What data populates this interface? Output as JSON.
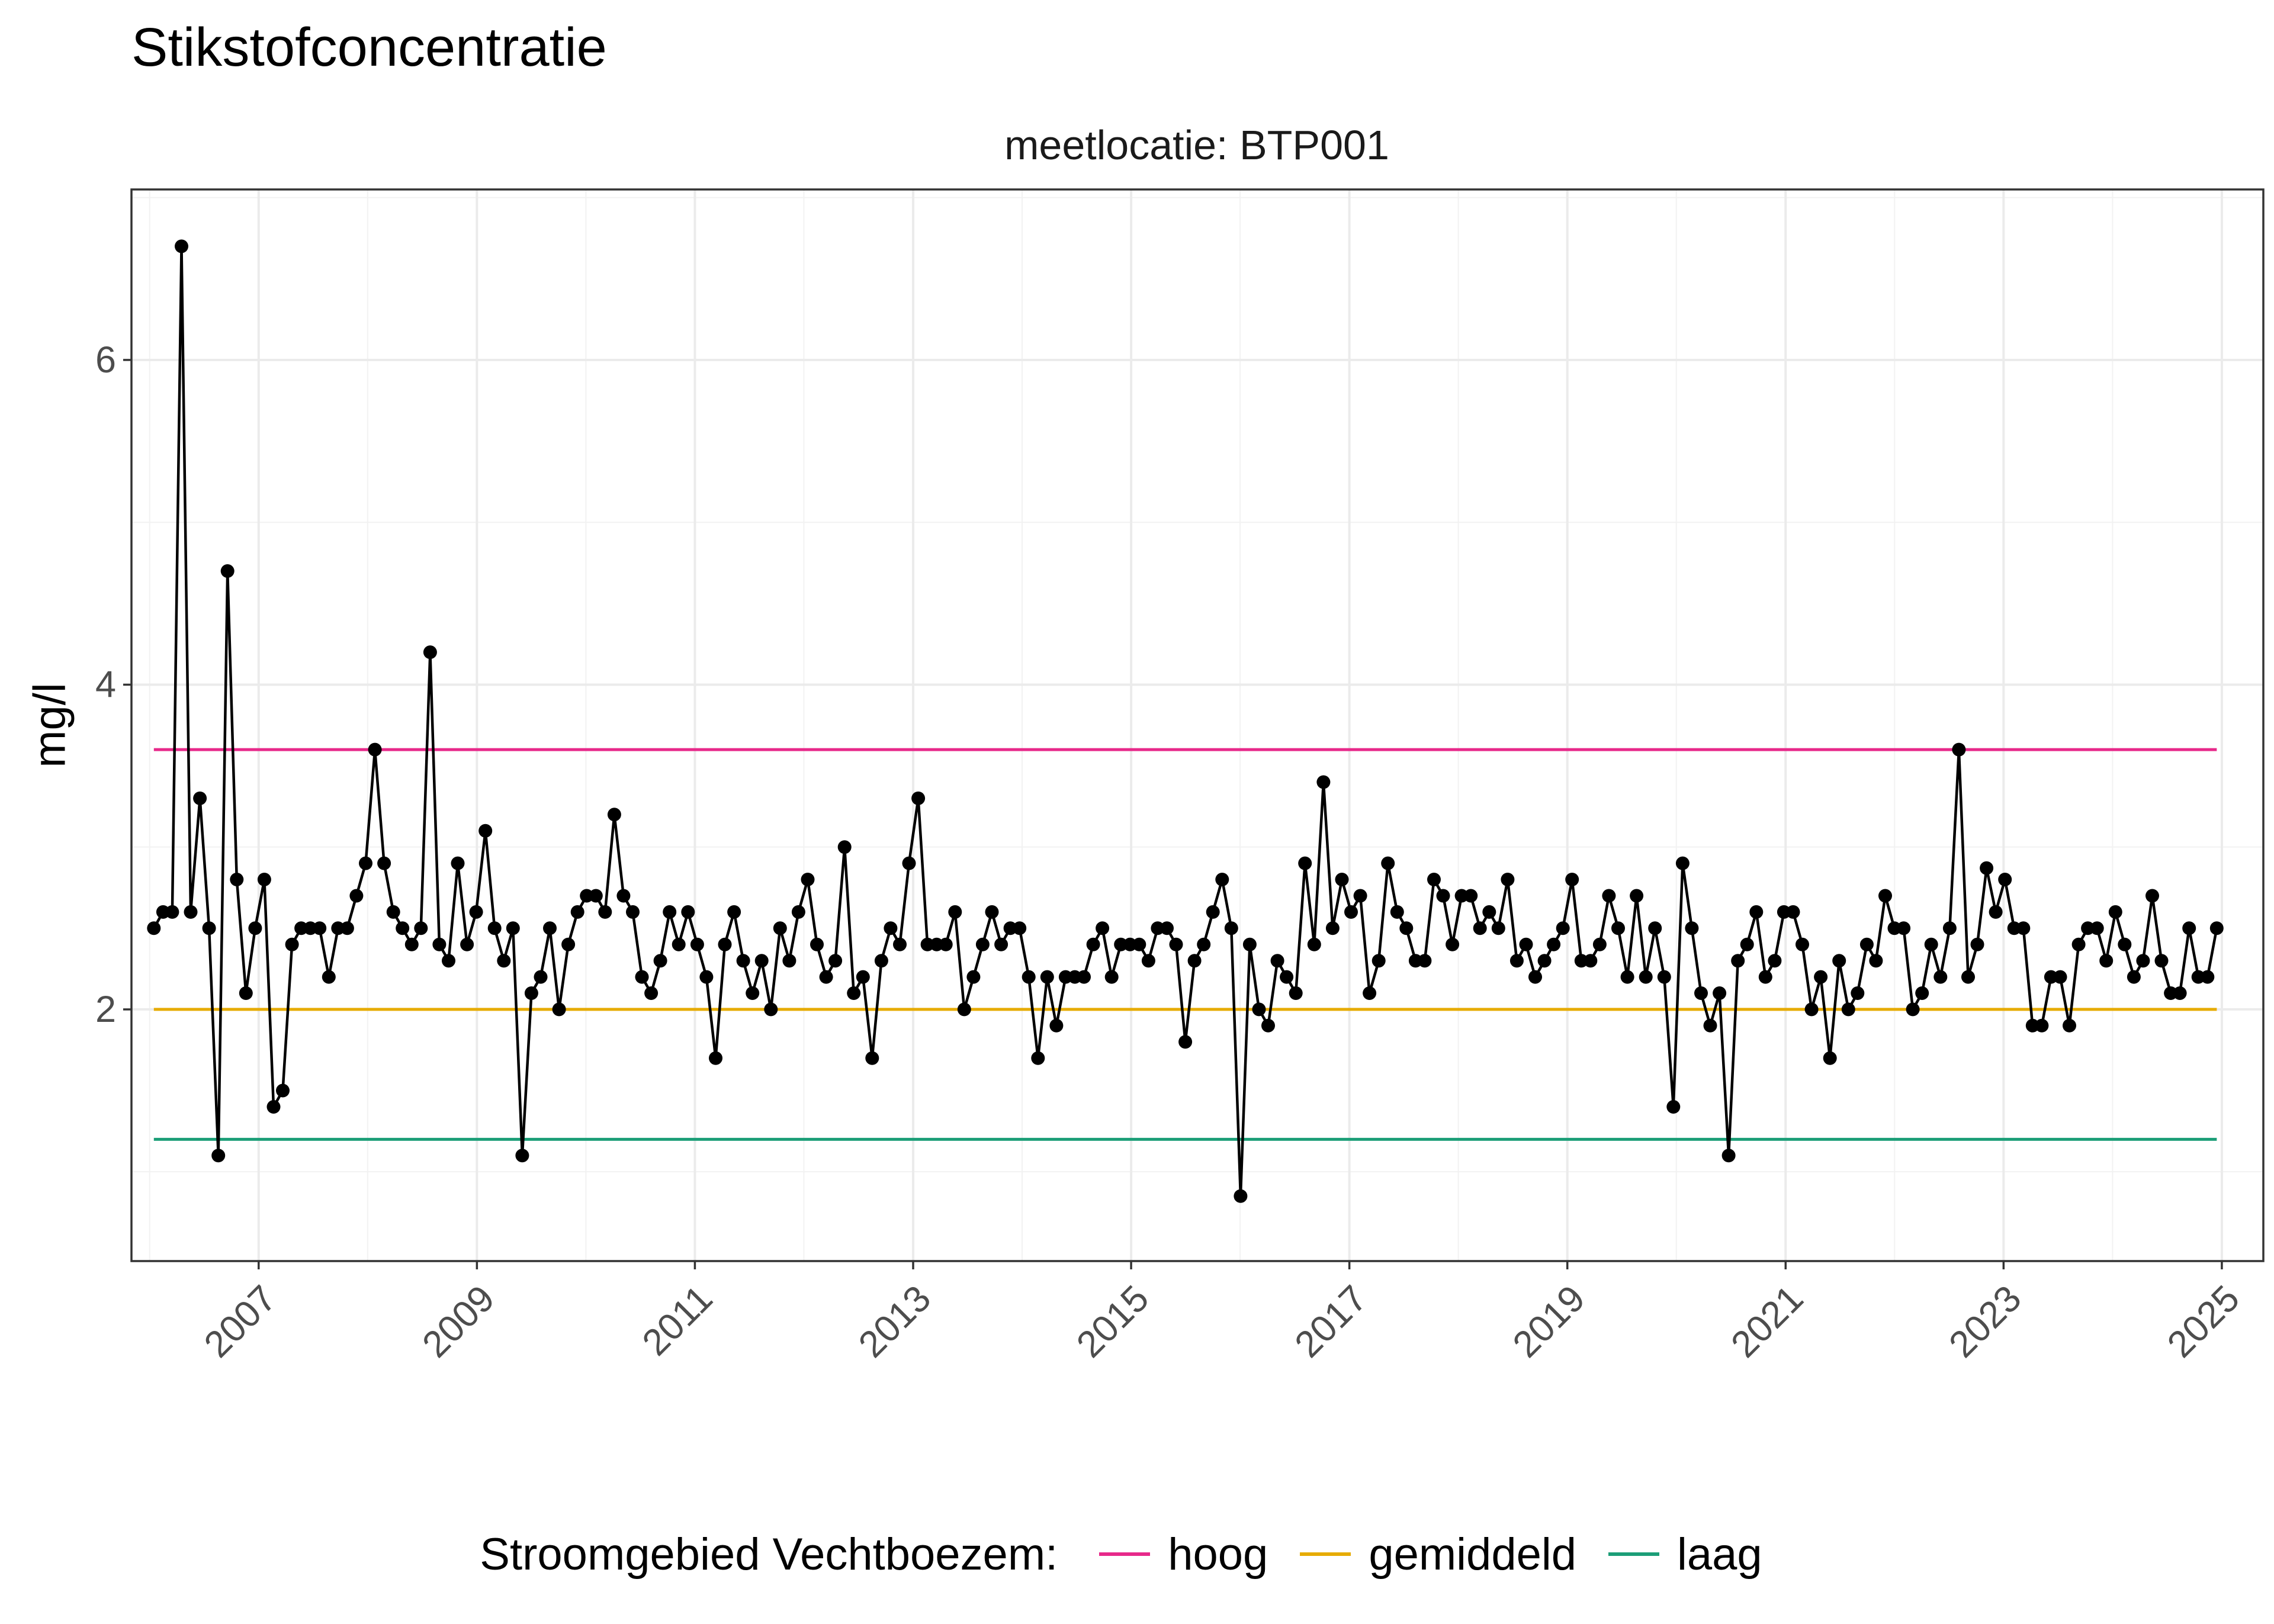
{
  "chart_data": {
    "type": "line",
    "title": "Stikstofconcentratie",
    "facet_label": "meetlocatie: BTP001",
    "xlabel": "",
    "ylabel": "mg/l",
    "xlim": [
      "2005-11-01",
      "2025-05-20"
    ],
    "ylim": [
      0.45,
      7.05
    ],
    "x_ticks": [
      "2007",
      "2009",
      "2011",
      "2013",
      "2015",
      "2017",
      "2019",
      "2021",
      "2023",
      "2025"
    ],
    "y_ticks": [
      2,
      4,
      6
    ],
    "grid": true,
    "legend_position": "bottom",
    "series_color": "#000000",
    "values": [
      2.5,
      2.6,
      2.6,
      6.7,
      2.6,
      3.3,
      2.5,
      1.1,
      4.7,
      2.8,
      2.1,
      2.5,
      2.8,
      1.4,
      1.5,
      2.4,
      2.5,
      2.5,
      2.5,
      2.2,
      2.5,
      2.5,
      2.7,
      2.9,
      3.6,
      2.9,
      2.6,
      2.5,
      2.4,
      2.5,
      4.2,
      2.4,
      2.3,
      2.9,
      2.4,
      2.6,
      3.1,
      2.5,
      2.3,
      2.5,
      1.1,
      2.1,
      2.2,
      2.5,
      2.0,
      2.4,
      2.6,
      2.7,
      2.7,
      2.6,
      3.2,
      2.7,
      2.6,
      2.2,
      2.1,
      2.3,
      2.6,
      2.4,
      2.6,
      2.4,
      2.2,
      1.7,
      2.4,
      2.6,
      2.3,
      2.1,
      2.3,
      2.0,
      2.5,
      2.3,
      2.6,
      2.8,
      2.4,
      2.2,
      2.3,
      3.0,
      2.1,
      2.2,
      1.7,
      2.3,
      2.5,
      2.4,
      2.9,
      3.3,
      2.4,
      2.4,
      2.4,
      2.6,
      2.0,
      2.2,
      2.4,
      2.6,
      2.4,
      2.5,
      2.5,
      2.2,
      1.7,
      2.2,
      1.9,
      2.2,
      2.2,
      2.2,
      2.4,
      2.5,
      2.2,
      2.4,
      2.4,
      2.4,
      2.3,
      2.5,
      2.5,
      2.4,
      1.8,
      2.3,
      2.4,
      2.6,
      2.8,
      2.5,
      0.85,
      2.4,
      2.0,
      1.9,
      2.3,
      2.2,
      2.1,
      2.9,
      2.4,
      3.4,
      2.5,
      2.8,
      2.6,
      2.7,
      2.1,
      2.3,
      2.9,
      2.6,
      2.5,
      2.3,
      2.3,
      2.8,
      2.7,
      2.4,
      2.7,
      2.7,
      2.5,
      2.6,
      2.5,
      2.8,
      2.3,
      2.4,
      2.2,
      2.3,
      2.4,
      2.5,
      2.8,
      2.3,
      2.3,
      2.4,
      2.7,
      2.5,
      2.2,
      2.7,
      2.2,
      2.5,
      2.2,
      1.4,
      2.9,
      2.5,
      2.1,
      1.9,
      2.1,
      1.1,
      2.3,
      2.4,
      2.6,
      2.2,
      2.3,
      2.6,
      2.6,
      2.4,
      2.0,
      2.2,
      1.7,
      2.3,
      2.0,
      2.1,
      2.4,
      2.3,
      2.7,
      2.5,
      2.5,
      2.0,
      2.1,
      2.4,
      2.2,
      2.5,
      3.6,
      2.2,
      2.4,
      2.87,
      2.6,
      2.8,
      2.5,
      2.5,
      1.9,
      1.9,
      2.2,
      2.2,
      1.9,
      2.4,
      2.5,
      2.5,
      2.3,
      2.6,
      2.4,
      2.2,
      2.3,
      2.7,
      2.3,
      2.1,
      2.1,
      2.5,
      2.2,
      2.2,
      2.5
    ],
    "x_range": [
      "2006-01-15",
      "2024-12-15"
    ],
    "reference_lines": [
      {
        "name": "hoog",
        "value": 3.6,
        "color": "#e7298a"
      },
      {
        "name": "gemiddeld",
        "value": 2.0,
        "color": "#e6ab02"
      },
      {
        "name": "laag",
        "value": 1.2,
        "color": "#1b9e77"
      }
    ]
  },
  "legend": {
    "title": "Stroomgebied Vechtboezem:",
    "items": [
      "hoog",
      "gemiddeld",
      "laag"
    ]
  }
}
